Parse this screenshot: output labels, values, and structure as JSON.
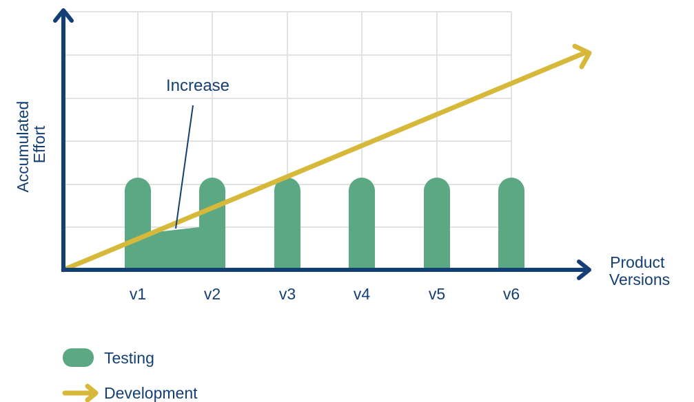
{
  "colors": {
    "axis": "#143F74",
    "grid": "#E2E2E2",
    "testing": "#5BA883",
    "development": "#D6B83A",
    "text": "#143F74",
    "background": "#FFFFFF"
  },
  "axes": {
    "y_label_line1": "Accumulated",
    "y_label_line2": "Effort",
    "x_label_line1": "Product",
    "x_label_line2": "Versions"
  },
  "versions": [
    "v1",
    "v2",
    "v3",
    "v4",
    "v5",
    "v6"
  ],
  "annotation": {
    "text": "Increase"
  },
  "legend": {
    "testing_label": "Testing",
    "testing_icon": "rounded-bar-icon",
    "development_label": "Development",
    "development_icon": "arrow-right-icon"
  }
}
